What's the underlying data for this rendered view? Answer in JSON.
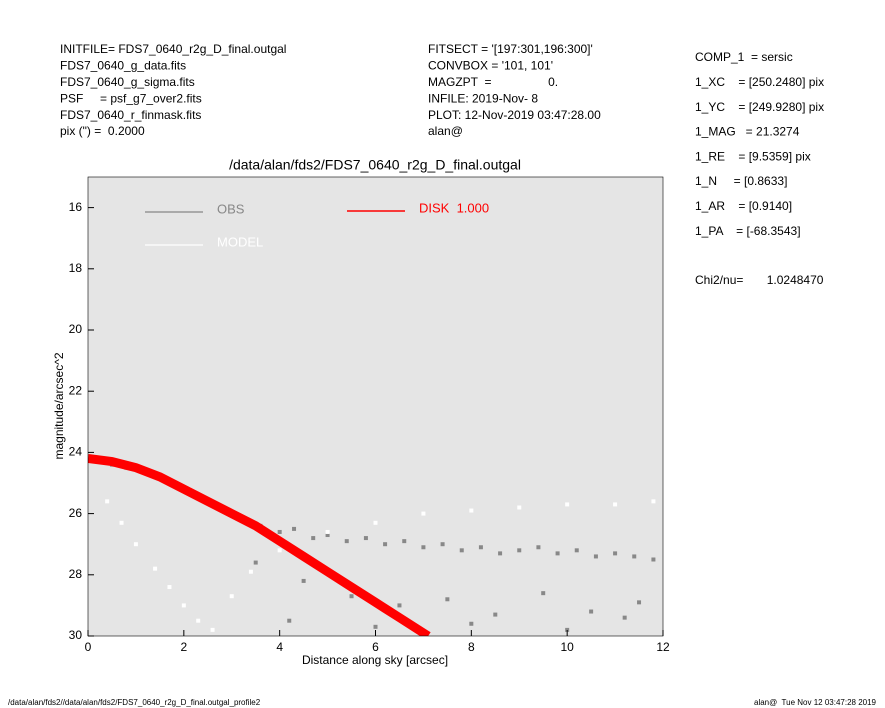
{
  "header": {
    "left": [
      "INITFILE= FDS7_0640_r2g_D_final.outgal",
      "FDS7_0640_g_data.fits",
      "FDS7_0640_g_sigma.fits",
      "PSF     = psf_g7_over2.fits",
      "FDS7_0640_r_finmask.fits",
      "pix (\") =  0.2000"
    ],
    "middle": [
      "FITSECT = '[197:301,196:300]'",
      "CONVBOX = '101, 101'",
      "MAGZPT  =                 0.",
      "INFILE: 2019-Nov- 8",
      "PLOT: 12-Nov-2019 03:47:28.00",
      "alan@"
    ],
    "right": [
      "COMP_1  = sersic",
      "1_XC    = [250.2480] pix",
      "1_YC    = [249.9280] pix",
      "1_MAG   = 21.3274",
      "1_RE    = [9.5359] pix",
      "1_N     = [0.8633]",
      "1_AR    = [0.9140]",
      "1_PA    = [-68.3543]",
      "Chi2/nu=       1.0248470"
    ]
  },
  "footer": {
    "left": "/data/alan/fds2//data/alan/fds2/FDS7_0640_r2g_D_final.outgal_profile2",
    "right": "alan@  Tue Nov 12 03:47:28 2019"
  },
  "chart_data": {
    "type": "scatter",
    "title": "/data/alan/fds2/FDS7_0640_r2g_D_final.outgal",
    "x_label": "Distance along sky [arcsec]",
    "y_label": "magnitude/arcsec^2",
    "xlim": [
      0,
      12
    ],
    "ylim": [
      30,
      15
    ],
    "xticks": [
      0,
      2,
      4,
      6,
      8,
      10,
      12
    ],
    "yticks": [
      16,
      18,
      20,
      22,
      24,
      26,
      28,
      30
    ],
    "background": "#e5e5e5",
    "series": [
      {
        "name": "OBS",
        "color": "#888888",
        "x": [
          0.2,
          0.5,
          0.8,
          1.0,
          1.3,
          1.6,
          1.9,
          2.2,
          2.5,
          2.8,
          3.0,
          3.3,
          3.6,
          4.0,
          4.3,
          4.7,
          5.0,
          5.4,
          5.8,
          6.2,
          6.6,
          7.0,
          7.4,
          7.8,
          8.2,
          8.6,
          9.0,
          9.4,
          9.8,
          10.2,
          10.6,
          11.0,
          11.4,
          11.8,
          3.5,
          4.5,
          5.5,
          6.5,
          7.5,
          8.5,
          9.5,
          10.5,
          11.5,
          4.2,
          6.0,
          8.0,
          10.0,
          11.2
        ],
        "values": [
          24.3,
          24.4,
          24.5,
          24.5,
          24.7,
          24.9,
          25.1,
          25.4,
          25.6,
          25.9,
          26.0,
          26.2,
          26.4,
          26.6,
          26.5,
          26.8,
          26.7,
          26.9,
          26.8,
          27.0,
          26.9,
          27.1,
          27.0,
          27.2,
          27.1,
          27.3,
          27.2,
          27.1,
          27.3,
          27.2,
          27.4,
          27.3,
          27.4,
          27.5,
          27.6,
          28.2,
          28.7,
          29.0,
          28.8,
          29.3,
          28.6,
          29.2,
          28.9,
          29.5,
          29.7,
          29.6,
          29.8,
          29.4
        ]
      },
      {
        "name": "MODEL",
        "color": "#ffffff",
        "x": [
          0.1,
          0.3,
          0.6,
          0.9,
          1.2,
          1.5,
          1.8,
          2.1,
          0.4,
          0.7,
          1.0,
          1.4,
          1.7,
          2.0,
          2.3,
          2.6,
          3.0,
          3.4,
          4.0,
          5.0,
          6.0,
          7.0,
          8.0,
          9.0,
          10.0,
          11.0,
          11.8
        ],
        "values": [
          24.2,
          24.3,
          24.4,
          24.5,
          24.6,
          24.8,
          25.0,
          25.2,
          25.6,
          26.3,
          27.0,
          27.8,
          28.4,
          29.0,
          29.5,
          29.8,
          28.7,
          27.9,
          27.2,
          26.6,
          26.3,
          26.0,
          25.9,
          25.8,
          25.7,
          25.7,
          25.6
        ]
      },
      {
        "name": "DISK  1.000",
        "color": "#ff0000",
        "line": true,
        "x": [
          0,
          0.5,
          1,
          1.5,
          2,
          2.5,
          3,
          3.5,
          4,
          4.5,
          5,
          5.5,
          6,
          6.5,
          7.1
        ],
        "values": [
          24.2,
          24.3,
          24.5,
          24.8,
          25.2,
          25.6,
          26.0,
          26.4,
          26.9,
          27.4,
          27.9,
          28.4,
          28.9,
          29.4,
          30.0
        ]
      }
    ]
  }
}
